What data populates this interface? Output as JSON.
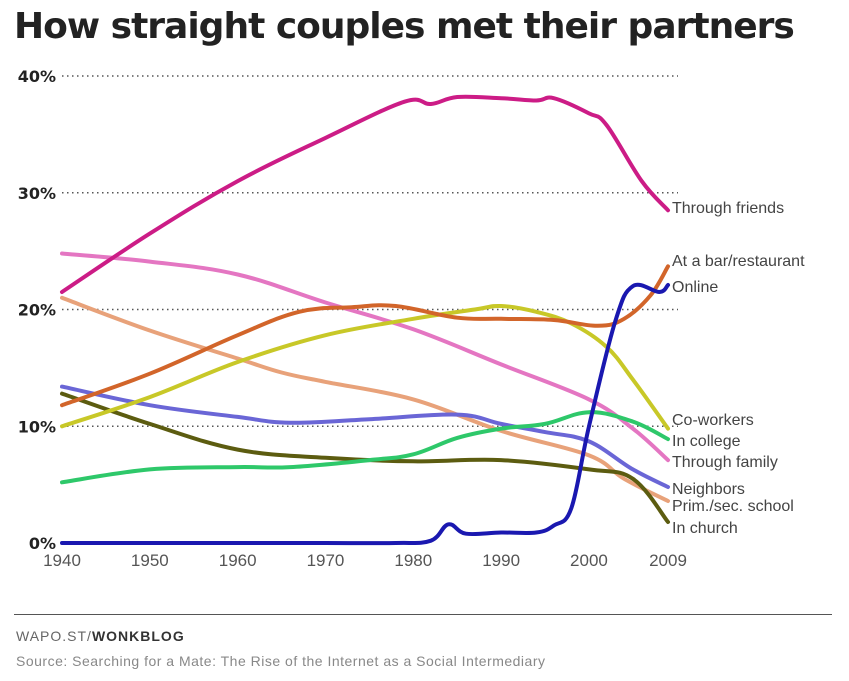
{
  "chart_data": {
    "type": "line",
    "title": "How straight couples met their partners",
    "xlabel": "",
    "ylabel": "",
    "x_ticks": [
      "1940",
      "1950",
      "1960",
      "1970",
      "1980",
      "1990",
      "2000",
      "2009"
    ],
    "y_ticks": [
      "0%",
      "10%",
      "20%",
      "30%",
      "40%"
    ],
    "xlim": [
      1940,
      2009
    ],
    "ylim": [
      0,
      40
    ],
    "grid": true,
    "legend": "direct labels at right end of lines",
    "series": [
      {
        "name": "Through friends",
        "color": "#cc1c86",
        "x": [
          1940,
          1950,
          1960,
          1970,
          1979,
          1982,
          1985,
          1990,
          1994,
          1996,
          2000,
          2002,
          2006,
          2009
        ],
        "y": [
          21.5,
          26.5,
          31,
          34.7,
          37.8,
          37.6,
          38.2,
          38.1,
          37.9,
          38.1,
          36.8,
          35.8,
          31,
          28.5
        ]
      },
      {
        "name": "At a bar/restaurant",
        "color": "#d2652a",
        "x": [
          1940,
          1950,
          1960,
          1967,
          1973,
          1978,
          1985,
          1990,
          1996,
          2001,
          2004,
          2007,
          2009
        ],
        "y": [
          11.8,
          14.5,
          17.8,
          19.8,
          20.2,
          20.3,
          19.3,
          19.2,
          19.1,
          18.6,
          19.2,
          21.2,
          23.7
        ]
      },
      {
        "name": "Online",
        "color": "#1a18b0",
        "x": [
          1940,
          1950,
          1960,
          1970,
          1978,
          1982,
          1984,
          1986,
          1990,
          1994,
          1996,
          1998,
          2000,
          2003,
          2005,
          2008,
          2009
        ],
        "y": [
          0,
          0,
          0,
          0,
          0,
          0.2,
          1.6,
          0.8,
          0.9,
          0.9,
          1.5,
          3,
          10,
          19,
          22,
          21.5,
          22.1
        ]
      },
      {
        "name": "Co-workers",
        "color": "#c8c828",
        "x": [
          1940,
          1950,
          1960,
          1970,
          1980,
          1987,
          1990,
          1994,
          1998,
          2002,
          2005,
          2009
        ],
        "y": [
          10,
          12.5,
          15.5,
          17.8,
          19.2,
          20,
          20.3,
          19.8,
          18.8,
          16.8,
          14,
          9.8
        ]
      },
      {
        "name": "In college",
        "color": "#2ec86a",
        "x": [
          1940,
          1950,
          1960,
          1966,
          1975,
          1980,
          1985,
          1990,
          1995,
          2000,
          2005,
          2009
        ],
        "y": [
          5.2,
          6.3,
          6.5,
          6.5,
          7.1,
          7.6,
          9,
          9.8,
          10.2,
          11.2,
          10.4,
          8.9
        ]
      },
      {
        "name": "Through family",
        "color": "#e476c2",
        "x": [
          1940,
          1950,
          1960,
          1970,
          1980,
          1990,
          2000,
          2005,
          2009
        ],
        "y": [
          24.8,
          24.1,
          23,
          20.6,
          18.3,
          15.3,
          12.3,
          9.8,
          7.1
        ]
      },
      {
        "name": "Neighbors",
        "color": "#6a66d6",
        "x": [
          1940,
          1950,
          1960,
          1966,
          1975,
          1985,
          1990,
          1995,
          2000,
          2005,
          2009
        ],
        "y": [
          13.4,
          11.8,
          10.8,
          10.3,
          10.6,
          11,
          10.2,
          9.5,
          8.7,
          6.3,
          4.8
        ]
      },
      {
        "name": "Prim./sec. school",
        "color": "#e8a27a",
        "x": [
          1940,
          1950,
          1960,
          1965,
          1970,
          1980,
          1990,
          2000,
          2004,
          2009
        ],
        "y": [
          21,
          18.2,
          15.8,
          14.6,
          13.8,
          12.3,
          9.6,
          7.5,
          5.5,
          3.6
        ]
      },
      {
        "name": "In church",
        "color": "#5c5c10",
        "x": [
          1940,
          1950,
          1960,
          1970,
          1980,
          1990,
          2000,
          2005,
          2009
        ],
        "y": [
          12.8,
          10.2,
          8,
          7.3,
          7,
          7.1,
          6.3,
          5.5,
          1.8
        ]
      }
    ]
  },
  "footer": {
    "credit_prefix": "WAPO.ST/",
    "credit_bold": "WONKBLOG",
    "source": "Source: Searching for a Mate: The Rise of the Internet as a Social Intermediary"
  }
}
